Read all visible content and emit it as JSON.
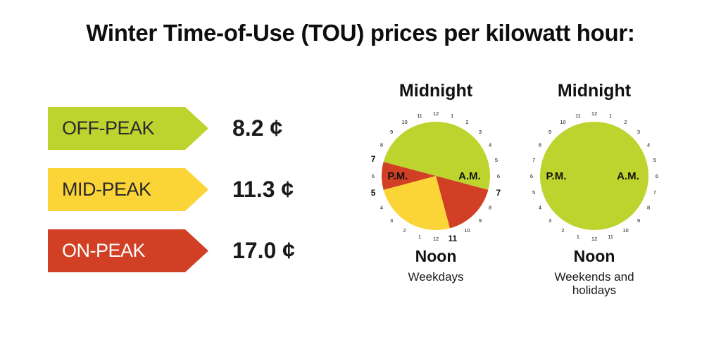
{
  "title": "Winter Time-of-Use (TOU) prices per kilowatt hour:",
  "colors": {
    "off_peak": "#BDD42F",
    "mid_peak": "#FBD437",
    "on_peak": "#D13F24"
  },
  "legend": [
    {
      "key": "off_peak",
      "label": "OFF-PEAK",
      "price": "8.2 ¢"
    },
    {
      "key": "mid_peak",
      "label": "MID-PEAK",
      "price": "11.3 ¢"
    },
    {
      "key": "on_peak",
      "label": "ON-PEAK",
      "price": "17.0 ¢"
    }
  ],
  "chart_data": [
    {
      "type": "pie",
      "top_label": "Midnight",
      "bottom_label": "Noon",
      "caption": "Weekdays",
      "am_label": "A.M.",
      "pm_label": "P.M.",
      "hour_ticks": [
        "12",
        "1",
        "2",
        "3",
        "4",
        "5",
        "6",
        "7",
        "8",
        "9",
        "10",
        "11",
        "12",
        "1",
        "2",
        "3",
        "4",
        "5",
        "6",
        "7",
        "8",
        "9",
        "10",
        "11"
      ],
      "bold_ticks": [
        "7",
        "11",
        "5",
        "7"
      ],
      "segments": [
        {
          "period": "off_peak",
          "start": "7 p.m.",
          "end": "7 a.m.",
          "hours": 12
        },
        {
          "period": "on_peak",
          "start": "7 a.m.",
          "end": "11 a.m.",
          "hours": 4
        },
        {
          "period": "mid_peak",
          "start": "11 a.m.",
          "end": "5 p.m.",
          "hours": 6
        },
        {
          "period": "on_peak",
          "start": "5 p.m.",
          "end": "7 p.m.",
          "hours": 2
        }
      ]
    },
    {
      "type": "pie",
      "top_label": "Midnight",
      "bottom_label": "Noon",
      "caption": "Weekends and holidays",
      "am_label": "A.M.",
      "pm_label": "P.M.",
      "hour_ticks": [
        "12",
        "1",
        "2",
        "3",
        "4",
        "5",
        "6",
        "7",
        "8",
        "9",
        "10",
        "11",
        "12",
        "1",
        "2",
        "3",
        "4",
        "5",
        "6",
        "7",
        "8",
        "9",
        "10",
        "11"
      ],
      "bold_ticks": [],
      "segments": [
        {
          "period": "off_peak",
          "start": "12 a.m.",
          "end": "12 a.m.",
          "hours": 24
        }
      ]
    }
  ]
}
